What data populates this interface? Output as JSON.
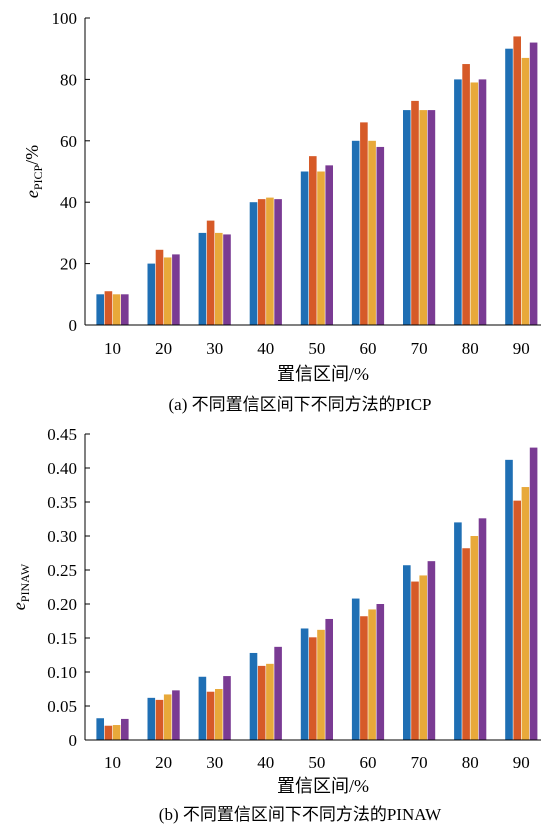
{
  "colors": [
    "#1f6fb4",
    "#d65a28",
    "#e8a93a",
    "#7a3b93"
  ],
  "chart_data": [
    {
      "type": "bar",
      "caption": "(a)  不同置信区间下不同方法的PICP",
      "xlabel": "置信区间/%",
      "ylabel_main": "e",
      "ylabel_sub": "PICP",
      "ylabel_suffix": "/%",
      "categories": [
        "10",
        "20",
        "30",
        "40",
        "50",
        "60",
        "70",
        "80",
        "90"
      ],
      "ylim": [
        0,
        100
      ],
      "yticks": [
        "0",
        "20",
        "40",
        "60",
        "80",
        "100"
      ],
      "series": [
        {
          "values": [
            10,
            20,
            30,
            40,
            50,
            60,
            70,
            80,
            90
          ]
        },
        {
          "values": [
            11,
            24.5,
            34,
            41,
            55,
            66,
            73,
            85,
            94
          ]
        },
        {
          "values": [
            10,
            22,
            30,
            41.5,
            50,
            60,
            70,
            79,
            87
          ]
        },
        {
          "values": [
            10,
            23,
            29.5,
            41,
            52,
            58,
            70,
            80,
            92
          ]
        }
      ]
    },
    {
      "type": "bar",
      "caption": "(b)  不同置信区间下不同方法的PINAW",
      "xlabel": "置信区间/%",
      "ylabel_main": "e",
      "ylabel_sub": "PINAW",
      "ylabel_suffix": "",
      "categories": [
        "10",
        "20",
        "30",
        "40",
        "50",
        "60",
        "70",
        "80",
        "90"
      ],
      "ylim": [
        0,
        0.45
      ],
      "yticks": [
        "0",
        "0.05",
        "0.10",
        "0.15",
        "0.20",
        "0.25",
        "0.30",
        "0.35",
        "0.40",
        "0.45"
      ],
      "series": [
        {
          "values": [
            0.032,
            0.062,
            0.093,
            0.128,
            0.164,
            0.208,
            0.257,
            0.32,
            0.412
          ]
        },
        {
          "values": [
            0.021,
            0.059,
            0.071,
            0.109,
            0.151,
            0.182,
            0.233,
            0.282,
            0.352
          ]
        },
        {
          "values": [
            0.022,
            0.067,
            0.075,
            0.112,
            0.162,
            0.192,
            0.242,
            0.3,
            0.372
          ]
        },
        {
          "values": [
            0.031,
            0.073,
            0.094,
            0.137,
            0.178,
            0.2,
            0.263,
            0.326,
            0.43
          ]
        }
      ]
    }
  ]
}
